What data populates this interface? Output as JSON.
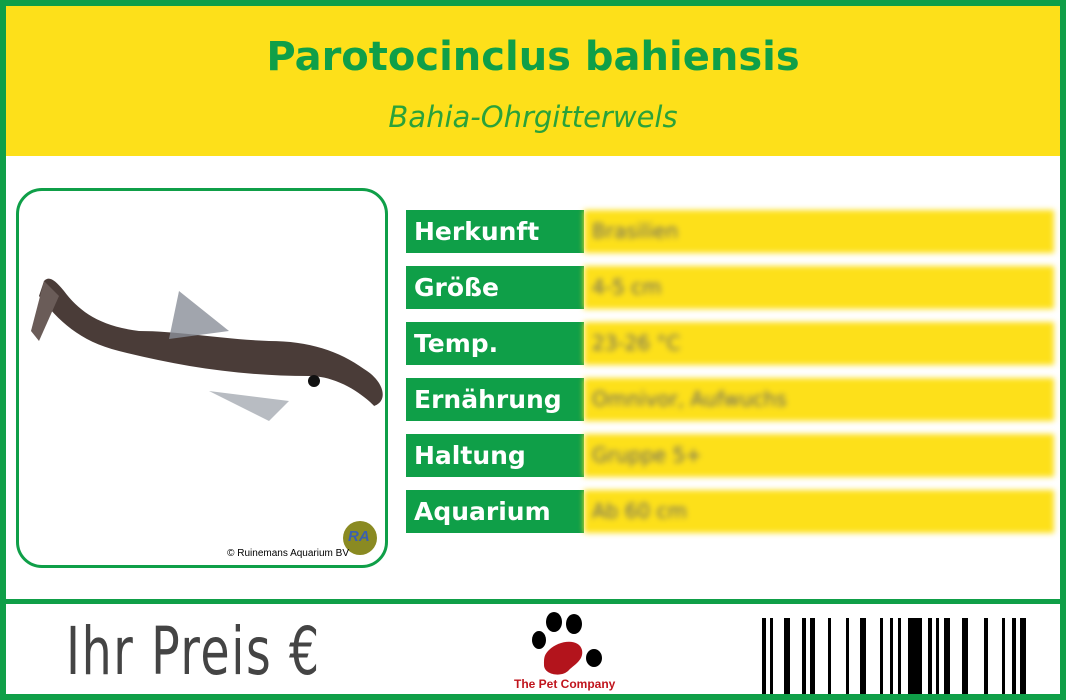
{
  "header": {
    "title": "Parotocinclus bahiensis",
    "subtitle": "Bahia-Ohrgitterwels"
  },
  "photo": {
    "credit": "© Ruinemans Aquarium BV",
    "logo_text": "RA"
  },
  "rows": [
    {
      "label": "Herkunft",
      "value": "Brasilien"
    },
    {
      "label": "Größe",
      "value": "4-5 cm"
    },
    {
      "label": "Temp.",
      "value": "23-26 °C"
    },
    {
      "label": "Ernährung",
      "value": "Omnivor, Aufwuchs"
    },
    {
      "label": "Haltung",
      "value": "Gruppe 5+"
    },
    {
      "label": "Aquarium",
      "value": "Ab 60 cm"
    }
  ],
  "footer": {
    "price_label": "Ihr Preis €",
    "brand": "The Pet Company",
    "icons": [
      "paw-icon",
      "barcode"
    ]
  },
  "colors": {
    "green": "#0f9f48",
    "yellow": "#fde01a",
    "brand_red": "#c0141c"
  }
}
